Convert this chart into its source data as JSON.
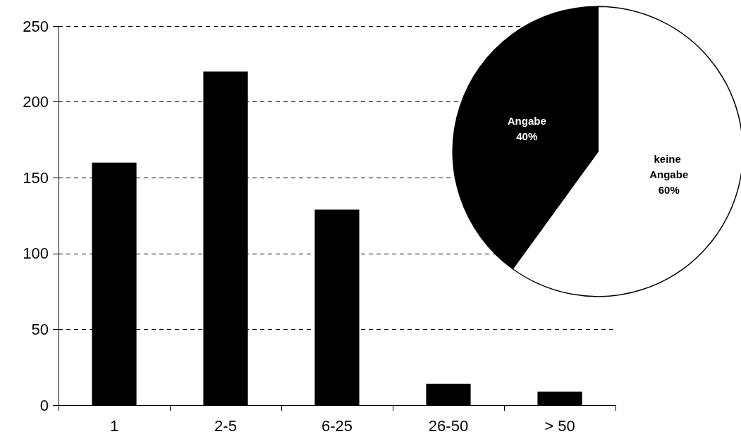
{
  "chart_data": [
    {
      "type": "bar",
      "categories": [
        "1",
        "2-5",
        "6-25",
        "26-50",
        "> 50"
      ],
      "values": [
        160,
        220,
        129,
        14,
        9
      ],
      "color": "#000000",
      "ylim": [
        0,
        250
      ],
      "yticks": [
        0,
        50,
        100,
        150,
        200,
        250
      ],
      "grid": "y"
    },
    {
      "type": "pie",
      "categories": [
        "keine Angabe",
        "Angabe"
      ],
      "values": [
        60,
        40
      ],
      "colors": [
        "#ffffff",
        "#000000"
      ],
      "value_labels": [
        "60%",
        "40%"
      ]
    }
  ]
}
